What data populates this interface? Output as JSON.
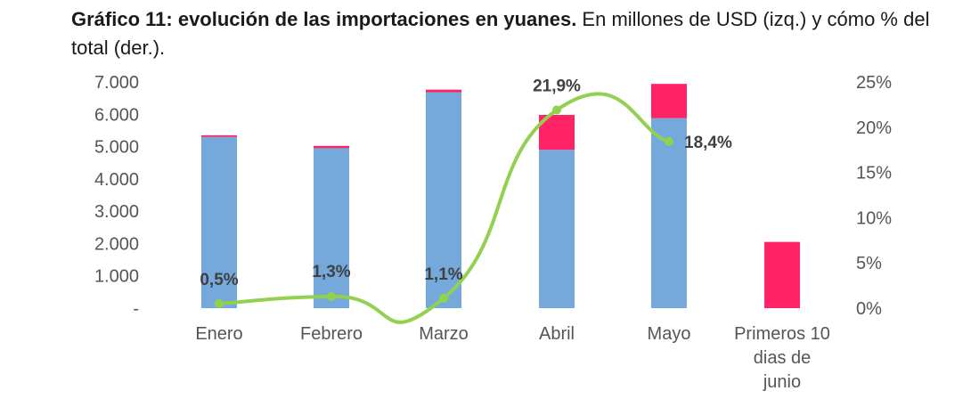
{
  "chart_data": {
    "type": "bar",
    "title_bold": "Gráfico 11: evolución de las importaciones en yuanes.",
    "title_rest": " En millones de USD (izq.) y cómo % del total (der.).",
    "categories": [
      "Enero",
      "Febrero",
      "Marzo",
      "Abril",
      "Mayo",
      "Primeros 10 dias de junio"
    ],
    "series": [
      {
        "values": [
          5300,
          4950,
          6680,
          4900,
          5880,
          0
        ],
        "color": "#76a9db",
        "stack": "imports"
      },
      {
        "values": [
          50,
          70,
          80,
          1080,
          1060,
          2050
        ],
        "color": "#ff2266",
        "stack": "imports"
      }
    ],
    "line_series": {
      "axis": "right",
      "values": [
        0.5,
        1.3,
        1.1,
        21.9,
        18.4
      ],
      "labels": [
        "0,5%",
        "1,3%",
        "1,1%",
        "21,9%",
        "18,4%"
      ],
      "color": "#92d050"
    },
    "y_left": {
      "ylim": [
        0,
        7000
      ],
      "ticks": [
        "-",
        "1.000",
        "2.000",
        "3.000",
        "4.000",
        "5.000",
        "6.000",
        "7.000"
      ]
    },
    "y_right": {
      "ylim": [
        0,
        25
      ],
      "ticks": [
        "0%",
        "5%",
        "10%",
        "15%",
        "20%",
        "25%"
      ]
    },
    "grid": false,
    "legend": "none"
  }
}
